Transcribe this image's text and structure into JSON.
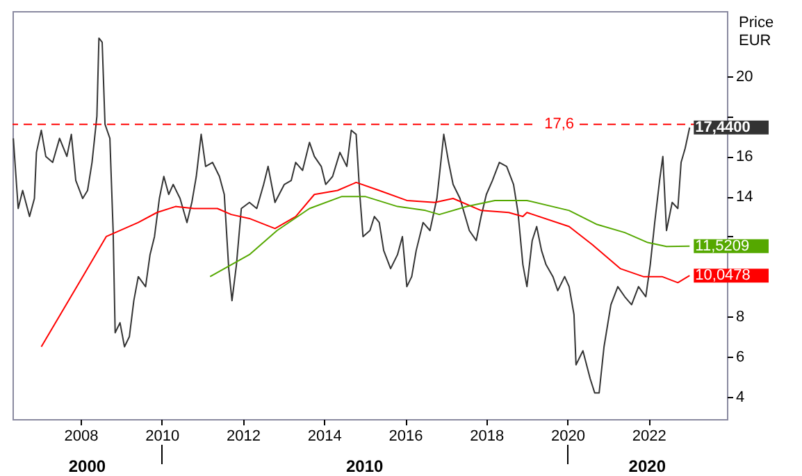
{
  "chart_data": {
    "type": "line",
    "ylabel": "Price\nEUR",
    "xlim": [
      2006.32,
      2023.93
    ],
    "xticks": [
      2008,
      2010,
      2012,
      2014,
      2016,
      2018,
      2020,
      2022
    ],
    "ylim": [
      2.89,
      23.25
    ],
    "yticks": [
      4,
      6,
      8,
      {
        "value": 10,
        "label": null
      },
      {
        "value": 12,
        "label": null
      },
      14,
      16,
      {
        "value": 18,
        "label": null
      },
      20
    ],
    "grid": false,
    "ref_lines": [
      {
        "axis": "y",
        "value": 17.6,
        "label": "17,6",
        "color": "#ff0000",
        "line_style": "dashed"
      }
    ],
    "annotations": [
      "2000",
      "2010",
      "2020"
    ],
    "series": [
      {
        "color": "#333333",
        "x": [
          2006.34,
          2006.46,
          2006.57,
          2006.74,
          2006.86,
          2006.91,
          2007.03,
          2007.14,
          2007.31,
          2007.48,
          2007.66,
          2007.77,
          2007.88,
          2008.05,
          2008.17,
          2008.28,
          2008.4,
          2008.45,
          2008.53,
          2008.6,
          2008.72,
          2008.8,
          2008.85,
          2008.97,
          2009.08,
          2009.2,
          2009.31,
          2009.42,
          2009.6,
          2009.71,
          2009.82,
          2009.94,
          2010.05,
          2010.17,
          2010.28,
          2010.45,
          2010.62,
          2010.74,
          2010.85,
          2010.97,
          2011.08,
          2011.25,
          2011.42,
          2011.54,
          2011.65,
          2011.73,
          2011.84,
          2011.96,
          2012.16,
          2012.34,
          2012.51,
          2012.62,
          2012.79,
          2012.84,
          2013.02,
          2013.19,
          2013.3,
          2013.47,
          2013.64,
          2013.76,
          2013.93,
          2014.04,
          2014.21,
          2014.39,
          2014.56,
          2014.67,
          2014.79,
          2014.88,
          2014.96,
          2015.13,
          2015.24,
          2015.36,
          2015.47,
          2015.64,
          2015.81,
          2015.93,
          2016.04,
          2016.16,
          2016.27,
          2016.44,
          2016.61,
          2016.78,
          2016.84,
          2016.95,
          2017.07,
          2017.18,
          2017.35,
          2017.58,
          2017.75,
          2017.87,
          2018.0,
          2018.15,
          2018.32,
          2018.5,
          2018.67,
          2018.78,
          2018.9,
          2019.0,
          2019.13,
          2019.24,
          2019.36,
          2019.47,
          2019.64,
          2019.76,
          2019.93,
          2020.04,
          2020.16,
          2020.21,
          2020.38,
          2020.56,
          2020.67,
          2020.78,
          2020.9,
          2021.07,
          2021.24,
          2021.41,
          2021.58,
          2021.75,
          2021.93,
          2022.04,
          2022.15,
          2022.27,
          2022.35,
          2022.44,
          2022.58,
          2022.72,
          2022.8,
          2022.9,
          2023.01
        ],
        "value_labels": [
          null,
          null,
          null,
          null,
          null,
          null,
          null,
          null,
          null,
          null,
          null,
          null,
          null,
          null,
          null,
          null,
          null,
          null,
          null,
          null,
          null,
          null,
          null,
          null,
          null,
          null,
          null,
          null,
          null,
          null,
          null,
          null,
          null,
          null,
          null,
          null,
          null,
          null,
          null,
          null,
          null,
          null,
          null,
          null,
          null,
          null,
          null,
          null,
          null,
          null,
          null,
          null,
          null,
          null,
          null,
          null,
          null,
          null,
          null,
          null,
          null,
          null,
          null,
          null,
          null,
          null,
          null,
          null,
          null,
          null,
          null,
          null,
          null,
          null,
          null,
          null,
          null,
          null,
          null,
          null,
          null,
          null,
          null,
          null,
          null,
          null,
          null,
          null,
          null,
          null,
          null,
          null,
          null,
          null,
          null,
          null,
          null,
          null,
          null,
          null,
          null,
          null,
          null,
          null,
          null,
          null,
          null,
          null,
          null,
          null,
          null,
          null,
          null,
          null,
          null,
          null,
          null,
          null,
          null,
          null,
          null,
          null,
          null,
          null,
          null,
          null,
          null,
          null,
          "17,4400"
        ],
        "values": [
          16.9,
          13.4,
          14.3,
          13.0,
          13.9,
          16.2,
          17.3,
          16.0,
          15.7,
          16.9,
          16.0,
          17.1,
          14.8,
          13.9,
          14.3,
          15.7,
          18.0,
          21.9,
          21.7,
          17.6,
          16.9,
          12.3,
          7.2,
          7.7,
          6.5,
          7.0,
          8.8,
          10.0,
          9.5,
          11.1,
          12.0,
          13.9,
          15.0,
          14.1,
          14.6,
          13.9,
          12.7,
          13.7,
          15.0,
          17.1,
          15.5,
          15.7,
          15.0,
          14.1,
          10.4,
          8.8,
          10.6,
          13.4,
          13.7,
          13.4,
          14.6,
          15.5,
          13.7,
          13.9,
          14.6,
          14.8,
          15.7,
          15.3,
          16.7,
          16.0,
          15.5,
          14.6,
          15.0,
          16.2,
          15.5,
          17.3,
          17.1,
          14.1,
          12.0,
          12.3,
          13.0,
          12.7,
          11.3,
          10.4,
          11.1,
          12.0,
          9.5,
          10.0,
          11.3,
          12.7,
          12.3,
          13.9,
          15.0,
          17.1,
          15.7,
          14.6,
          13.9,
          12.3,
          11.8,
          13.0,
          14.1,
          14.8,
          15.7,
          15.5,
          14.6,
          13.2,
          10.6,
          9.5,
          11.8,
          12.5,
          11.3,
          10.6,
          10.0,
          9.3,
          10.0,
          9.5,
          8.1,
          5.6,
          6.3,
          4.9,
          4.2,
          4.2,
          6.5,
          8.6,
          9.5,
          9.0,
          8.6,
          9.5,
          9.0,
          10.6,
          12.7,
          14.8,
          16.0,
          12.3,
          13.7,
          13.4,
          15.7,
          16.4,
          17.44
        ]
      },
      {
        "color": "#ff0000",
        "x": [
          2007.03,
          2008.05,
          2008.63,
          2009.42,
          2009.88,
          2010.34,
          2010.79,
          2011.37,
          2011.71,
          2012.16,
          2012.79,
          2013.3,
          2013.76,
          2014.33,
          2014.79,
          2015.36,
          2016.04,
          2016.73,
          2017.18,
          2017.87,
          2018.55,
          2018.9,
          2019.0,
          2020.04,
          2020.61,
          2021.3,
          2021.87,
          2022.33,
          2022.72,
          2023.01
        ],
        "value_labels": [
          null,
          null,
          null,
          null,
          null,
          null,
          null,
          null,
          null,
          null,
          null,
          null,
          null,
          null,
          null,
          null,
          null,
          null,
          null,
          null,
          null,
          null,
          null,
          null,
          null,
          null,
          null,
          null,
          null,
          "10,0478"
        ],
        "values": [
          6.5,
          10.0,
          12.0,
          12.7,
          13.2,
          13.5,
          13.4,
          13.4,
          13.1,
          12.9,
          12.4,
          13.0,
          14.1,
          14.3,
          14.7,
          14.3,
          13.8,
          13.7,
          13.9,
          13.3,
          13.2,
          13.0,
          13.2,
          12.5,
          11.6,
          10.4,
          10.0,
          10.0,
          9.7,
          10.05
        ]
      },
      {
        "color": "#55a800",
        "x": [
          2011.19,
          2012.16,
          2012.84,
          2013.64,
          2014.44,
          2015.01,
          2015.81,
          2016.5,
          2016.84,
          2017.52,
          2018.21,
          2018.9,
          2019.0,
          2020.04,
          2020.73,
          2021.41,
          2021.98,
          2022.44,
          2023.01
        ],
        "value_labels": [
          null,
          null,
          null,
          null,
          null,
          null,
          null,
          null,
          null,
          null,
          null,
          null,
          null,
          null,
          null,
          null,
          null,
          null,
          "11,5209"
        ],
        "values": [
          10.0,
          11.1,
          12.3,
          13.4,
          14.0,
          14.0,
          13.5,
          13.3,
          13.1,
          13.5,
          13.8,
          13.8,
          13.8,
          13.3,
          12.6,
          12.2,
          11.7,
          11.5,
          11.52
        ]
      }
    ]
  }
}
